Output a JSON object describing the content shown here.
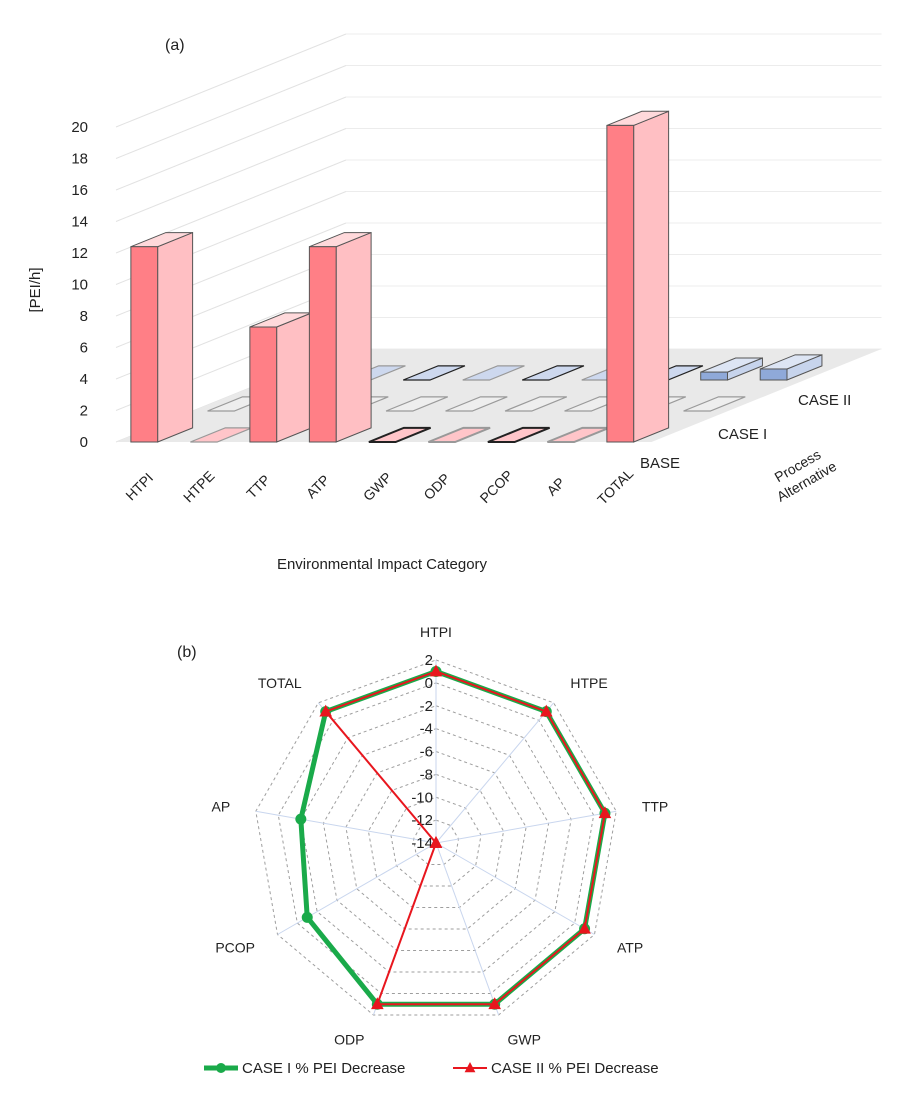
{
  "panel_a_label": "(a)",
  "panel_b_label": "(b)",
  "chart_data": [
    {
      "type": "bar",
      "subtype": "3d-bar",
      "ylabel": "[PEI/h]",
      "xlabel": "Environmental Impact Category",
      "zlabel": "Process Alternative",
      "ylim": [
        0,
        20
      ],
      "yticks": [
        0,
        2,
        4,
        6,
        8,
        10,
        12,
        14,
        16,
        18,
        20
      ],
      "grid": true,
      "categories": [
        "HTPI",
        "HTPE",
        "TTP",
        "ATP",
        "GWP",
        "ODP",
        "PCOP",
        "AP",
        "TOTAL"
      ],
      "series": [
        {
          "name": "BASE",
          "values": [
            12.4,
            0.0,
            7.3,
            12.4,
            0.0,
            0.0,
            0.0,
            0.0,
            20.1
          ],
          "color": "#ff7f86"
        },
        {
          "name": "CASE I",
          "values": [
            0.0,
            0.0,
            0.0,
            0.0,
            0.0,
            0.0,
            0.0,
            0.0,
            0.0
          ],
          "color": "#d9d9d9"
        },
        {
          "name": "CASE II",
          "values": [
            0.0,
            0.0,
            0.0,
            0.0,
            0.0,
            0.0,
            0.0,
            0.5,
            0.7
          ],
          "color": "#8fa9d9"
        }
      ]
    },
    {
      "type": "radar",
      "categories": [
        "HTPI",
        "HTPE",
        "TTP",
        "ATP",
        "GWP",
        "ODP",
        "PCOP",
        "AP",
        "TOTAL"
      ],
      "rlim": [
        -14,
        2
      ],
      "rticks": [
        2,
        0,
        -2,
        -4,
        -6,
        -8,
        -10,
        -12,
        -14
      ],
      "legend_position": "bottom",
      "series": [
        {
          "name": "CASE I % PEI Decrease",
          "values": [
            1,
            1,
            1,
            1,
            1,
            1,
            -1,
            -2,
            1
          ],
          "color": "#1aaa4a",
          "marker": "circle"
        },
        {
          "name": "CASE II % PEI Decrease",
          "values": [
            1,
            1,
            1,
            1,
            1,
            1,
            -14,
            -14,
            1
          ],
          "color": "#e8161e",
          "marker": "triangle"
        }
      ]
    }
  ]
}
